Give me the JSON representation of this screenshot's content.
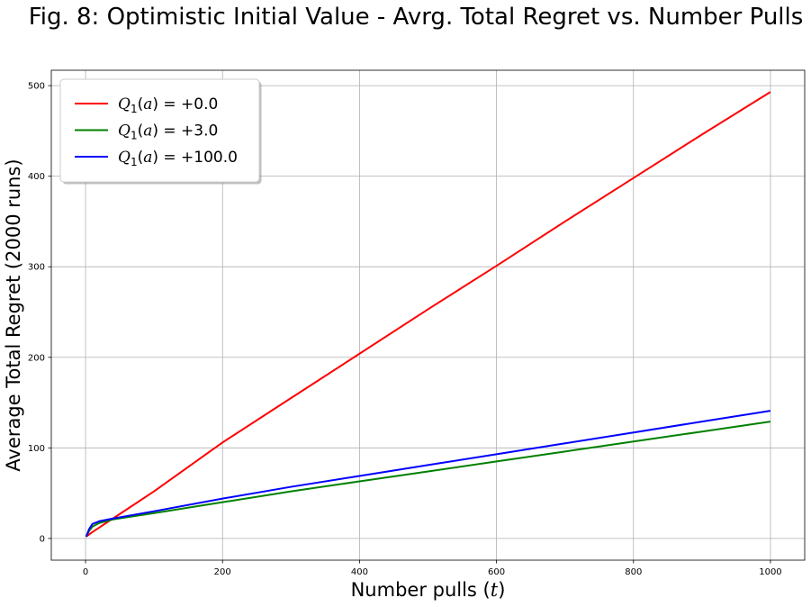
{
  "chart_data": {
    "type": "line",
    "title": "Fig. 8: Optimistic Initial Value - Avrg. Total Regret vs. Number Pulls",
    "xlabel": "Number pulls (t)",
    "xlabel_prefix": "Number pulls (",
    "xlabel_var": "t",
    "xlabel_suffix": ")",
    "ylabel": "Average Total Regret (2000 runs)",
    "xlim": [
      -50,
      1050
    ],
    "ylim": [
      -24,
      517
    ],
    "xticks": [
      0,
      200,
      400,
      600,
      800,
      1000
    ],
    "yticks": [
      0,
      100,
      200,
      300,
      400,
      500
    ],
    "grid": true,
    "legend_position": "top-left",
    "series": [
      {
        "name": "Q1(a) = +0.0",
        "color": "#ff0000",
        "x": [
          1,
          10,
          100,
          200,
          300,
          400,
          500,
          600,
          700,
          800,
          900,
          1000
        ],
        "y": [
          2,
          7,
          52,
          106,
          155,
          204,
          253,
          301,
          350,
          398,
          446,
          493
        ]
      },
      {
        "name": "Q1(a) = +3.0",
        "color": "#008000",
        "x": [
          1,
          5,
          10,
          20,
          40,
          100,
          200,
          300,
          400,
          500,
          600,
          700,
          800,
          900,
          1000
        ],
        "y": [
          2,
          8,
          13,
          17,
          21,
          28,
          40,
          52,
          63,
          74,
          85,
          96,
          107,
          118,
          129
        ]
      },
      {
        "name": "Q1(a) = +100.0",
        "color": "#0000ff",
        "x": [
          1,
          5,
          10,
          20,
          40,
          100,
          200,
          300,
          400,
          500,
          600,
          700,
          800,
          900,
          1000
        ],
        "y": [
          2,
          10,
          16,
          19,
          22,
          30,
          44,
          57,
          69,
          81,
          93,
          105,
          117,
          129,
          141
        ]
      }
    ]
  }
}
